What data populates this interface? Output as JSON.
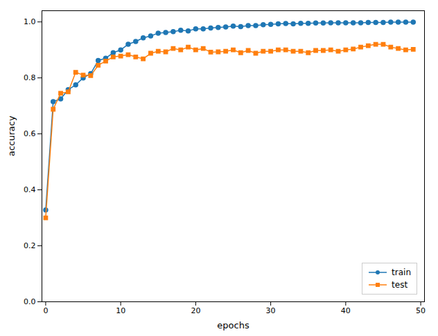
{
  "chart_data": {
    "type": "line",
    "x": [
      0,
      1,
      2,
      3,
      4,
      5,
      6,
      7,
      8,
      9,
      10,
      11,
      12,
      13,
      14,
      15,
      16,
      17,
      18,
      19,
      20,
      21,
      22,
      23,
      24,
      25,
      26,
      27,
      28,
      29,
      30,
      31,
      32,
      33,
      34,
      35,
      36,
      37,
      38,
      39,
      40,
      41,
      42,
      43,
      44,
      45,
      46,
      47,
      48,
      49
    ],
    "series": [
      {
        "name": "train",
        "color": "#1f77b4",
        "marker": "circle",
        "values": [
          0.328,
          0.715,
          0.725,
          0.758,
          0.775,
          0.8,
          0.815,
          0.862,
          0.87,
          0.89,
          0.9,
          0.92,
          0.93,
          0.943,
          0.95,
          0.96,
          0.962,
          0.965,
          0.97,
          0.968,
          0.975,
          0.975,
          0.978,
          0.98,
          0.982,
          0.985,
          0.983,
          0.987,
          0.987,
          0.99,
          0.991,
          0.993,
          0.994,
          0.993,
          0.995,
          0.995,
          0.996,
          0.996,
          0.997,
          0.997,
          0.997,
          0.997,
          0.997,
          0.998,
          0.998,
          0.998,
          0.999,
          0.999,
          0.999,
          0.999
        ]
      },
      {
        "name": "test",
        "color": "#ff7f0e",
        "marker": "square",
        "values": [
          0.3,
          0.688,
          0.745,
          0.75,
          0.82,
          0.81,
          0.808,
          0.845,
          0.86,
          0.875,
          0.878,
          0.883,
          0.875,
          0.868,
          0.888,
          0.895,
          0.893,
          0.905,
          0.9,
          0.91,
          0.9,
          0.905,
          0.892,
          0.893,
          0.895,
          0.9,
          0.89,
          0.898,
          0.888,
          0.895,
          0.895,
          0.9,
          0.9,
          0.895,
          0.895,
          0.89,
          0.898,
          0.898,
          0.9,
          0.895,
          0.9,
          0.903,
          0.91,
          0.915,
          0.92,
          0.92,
          0.91,
          0.905,
          0.9,
          0.902
        ]
      }
    ],
    "xlabel": "epochs",
    "ylabel": "accuracy",
    "xlim": [
      -0.5,
      50.5
    ],
    "ylim": [
      0,
      1.04
    ],
    "xticks": [
      0,
      10,
      20,
      30,
      40,
      50
    ],
    "yticks": [
      {
        "value": 0,
        "label": "0.0"
      },
      0.2,
      0.4,
      0.6,
      0.8,
      {
        "value": 1,
        "label": "1.0"
      }
    ],
    "legend": "lower right"
  }
}
